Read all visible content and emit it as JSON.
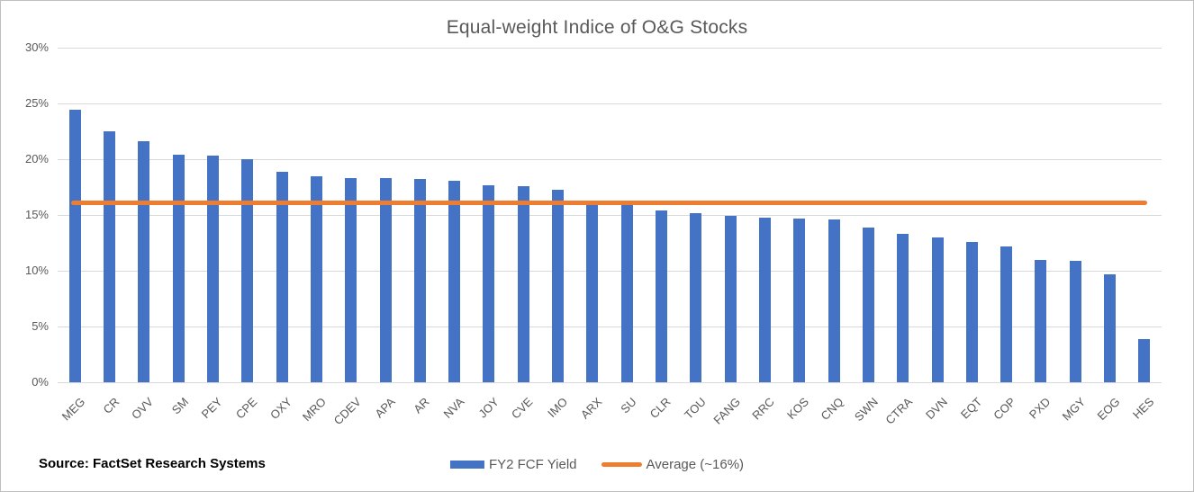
{
  "title": "Equal-weight Indice of O&G Stocks",
  "source_note": "Source: FactSet Research Systems",
  "legend": {
    "series_label": "FY2 FCF Yield",
    "average_label": "Average (~16%)"
  },
  "colors": {
    "bar": "#4472C4",
    "average_line": "#ED7D31",
    "gridline": "#D9D9D9",
    "axis_text": "#595959",
    "title_text": "#595959",
    "source_text": "#000000",
    "border": "#BFBFBF",
    "background": "#FFFFFF"
  },
  "chart_data": {
    "type": "bar",
    "title": "Equal-weight Indice of O&G Stocks",
    "xlabel": "",
    "ylabel": "",
    "categories": [
      "MEG",
      "CR",
      "OVV",
      "SM",
      "PEY",
      "CPE",
      "OXY",
      "MRO",
      "CDEV",
      "APA",
      "AR",
      "NVA",
      "JOY",
      "CVE",
      "IMO",
      "ARX",
      "SU",
      "CLR",
      "TOU",
      "FANG",
      "RRC",
      "KOS",
      "CNQ",
      "SWN",
      "CTRA",
      "DVN",
      "EQT",
      "COP",
      "PXD",
      "MGY",
      "EOG",
      "HES"
    ],
    "series": [
      {
        "name": "FY2 FCF Yield",
        "unit": "%",
        "values": [
          24.4,
          22.5,
          21.6,
          20.4,
          20.3,
          20.0,
          18.9,
          18.5,
          18.3,
          18.3,
          18.2,
          18.1,
          17.7,
          17.6,
          17.3,
          16.0,
          15.9,
          15.4,
          15.2,
          14.9,
          14.8,
          14.7,
          14.6,
          13.9,
          13.3,
          13.0,
          12.6,
          12.2,
          11.0,
          10.9,
          9.7,
          3.9
        ]
      }
    ],
    "average_line": {
      "name": "Average (~16%)",
      "value": 16.1,
      "unit": "%"
    },
    "ylim": [
      0,
      30
    ],
    "ytick_step": 5,
    "ytick_labels": [
      "0%",
      "5%",
      "10%",
      "15%",
      "20%",
      "25%",
      "30%"
    ],
    "grid": true,
    "legend_position": "bottom-center"
  }
}
